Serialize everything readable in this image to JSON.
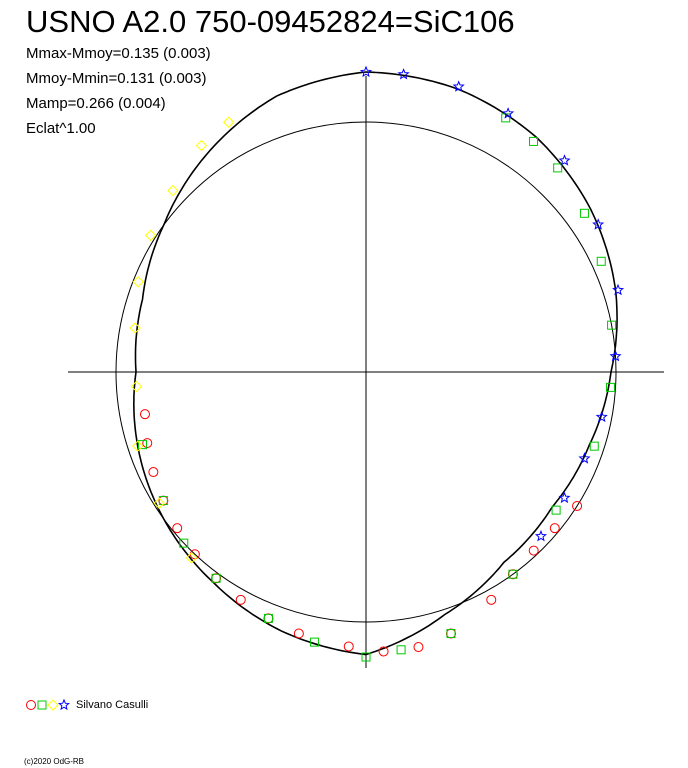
{
  "chart_data": {
    "type": "scatter",
    "title": "USNO A2.0 750-09452824=SiC106",
    "stats": [
      "Mmax-Mmoy=0.135 (0.003)",
      "Mmoy-Mmin=0.131 (0.003)",
      "Mamp=0.266 (0.004)",
      "Eclat^1.00"
    ],
    "coordinate_system": "polar phase diagram, phase 0 at top, clockwise",
    "reference_circle_radius": 0.5,
    "ylim": [
      0,
      1
    ],
    "grid": false,
    "legend_position": "bottom-left",
    "legend_label": "Silvano Casulli",
    "colors": {
      "axis": "#000000",
      "red": "#ff0000",
      "green": "#00c800",
      "yellow": "#ffff00",
      "blue": "#0000ff"
    },
    "model_curve": {
      "phase": [
        0.0,
        0.05,
        0.1,
        0.15,
        0.2,
        0.25,
        0.3,
        0.35,
        0.4,
        0.45,
        0.5,
        0.55,
        0.6,
        0.65,
        0.7,
        0.75,
        0.8,
        0.85,
        0.9,
        0.95
      ],
      "radius": [
        0.6,
        0.595,
        0.58,
        0.555,
        0.525,
        0.49,
        0.47,
        0.46,
        0.47,
        0.51,
        0.565,
        0.545,
        0.52,
        0.5,
        0.48,
        0.46,
        0.47,
        0.5,
        0.54,
        0.58
      ]
    },
    "series": [
      {
        "name": "",
        "marker": "circle",
        "color": "red",
        "phase": [
          0.34,
          0.36,
          0.38,
          0.4,
          0.42,
          0.45,
          0.47,
          0.49,
          0.51,
          0.54,
          0.56,
          0.58,
          0.6,
          0.62,
          0.64,
          0.66,
          0.68,
          0.7,
          0.72
        ],
        "radius": [
          0.5,
          0.49,
          0.49,
          0.5,
          0.52,
          0.55,
          0.56,
          0.56,
          0.55,
          0.54,
          0.53,
          0.52,
          0.51,
          0.5,
          0.49,
          0.48,
          0.47,
          0.46,
          0.45
        ]
      },
      {
        "name": "",
        "marker": "square",
        "color": "green",
        "phase": [
          0.08,
          0.1,
          0.12,
          0.15,
          0.18,
          0.22,
          0.26,
          0.3,
          0.35,
          0.4,
          0.45,
          0.48,
          0.5,
          0.53,
          0.56,
          0.6,
          0.63,
          0.66,
          0.7
        ],
        "radius": [
          0.58,
          0.57,
          0.56,
          0.54,
          0.52,
          0.5,
          0.49,
          0.48,
          0.47,
          0.5,
          0.55,
          0.56,
          0.57,
          0.55,
          0.53,
          0.51,
          0.5,
          0.48,
          0.47
        ]
      },
      {
        "name": "",
        "marker": "diamond",
        "color": "yellow",
        "phase": [
          0.62,
          0.66,
          0.7,
          0.74,
          0.78,
          0.81,
          0.84,
          0.87,
          0.9,
          0.92
        ],
        "radius": [
          0.51,
          0.49,
          0.48,
          0.46,
          0.47,
          0.49,
          0.51,
          0.53,
          0.56,
          0.57
        ]
      },
      {
        "name": "",
        "marker": "star",
        "color": "blue",
        "phase": [
          0.0,
          0.02,
          0.05,
          0.08,
          0.12,
          0.16,
          0.2,
          0.24,
          0.28,
          0.31,
          0.34,
          0.37
        ],
        "radius": [
          0.6,
          0.6,
          0.6,
          0.59,
          0.58,
          0.55,
          0.53,
          0.5,
          0.48,
          0.47,
          0.47,
          0.48
        ]
      }
    ]
  },
  "copyright": "(c)2020 OdG-RB"
}
